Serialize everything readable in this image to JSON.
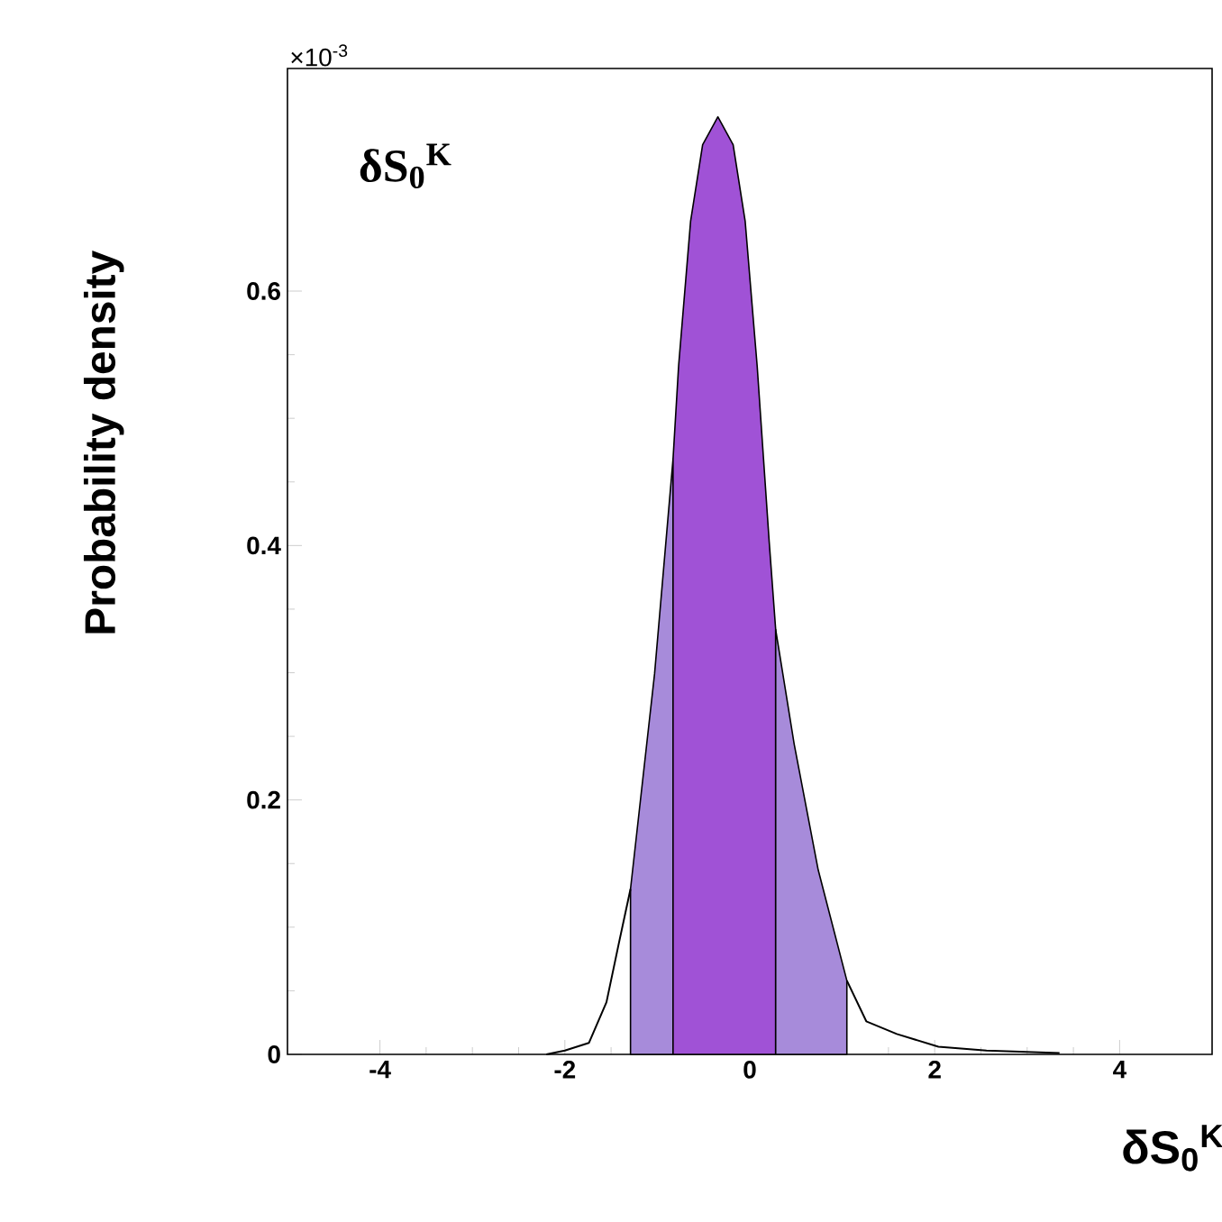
{
  "chart_data": {
    "type": "line",
    "title": "δS$_{0}$$^{K}$",
    "xlabel": "δS$_{0}$$^{K}$",
    "ylabel": "Probability density",
    "annotations": [
      "×10$^{-3}$"
    ],
    "xlim": [
      -5,
      5
    ],
    "ylim": [
      0,
      0.775
    ],
    "xticks": [
      -4,
      -2,
      0,
      2,
      4
    ],
    "yticks": [
      0,
      0.2,
      0.4,
      0.6
    ],
    "series": [
      {
        "type": "area",
        "color": "#a78bda",
        "x": [
          -1.29,
          -1.03,
          -0.83
        ],
        "values": [
          0.13,
          0.299,
          0.468
        ]
      },
      {
        "type": "area",
        "color": "#a052d6",
        "x": [
          -0.83,
          -0.77,
          -0.64,
          -0.51,
          -0.345,
          -0.18,
          -0.05,
          0.08,
          0.21,
          0.28
        ],
        "values": [
          0.468,
          0.541,
          0.655,
          0.715,
          0.737,
          0.715,
          0.655,
          0.541,
          0.403,
          0.334
        ]
      },
      {
        "type": "area",
        "color": "#a78bda",
        "x": [
          0.28,
          0.48,
          0.74,
          1.05
        ],
        "values": [
          0.334,
          0.244,
          0.145,
          0.058
        ]
      },
      {
        "color": "#000000",
        "x": [
          -2.2,
          -2.0,
          -1.74,
          -1.55,
          -1.42,
          -1.29,
          0,
          1.05,
          1.26,
          1.59,
          2.04,
          2.56,
          3.35
        ],
        "values": [
          0,
          0.003,
          0.009,
          0.041,
          0.086,
          0.13,
          null,
          0.058,
          0.026,
          0.016,
          0.006,
          0.003,
          0.001
        ]
      }
    ]
  }
}
